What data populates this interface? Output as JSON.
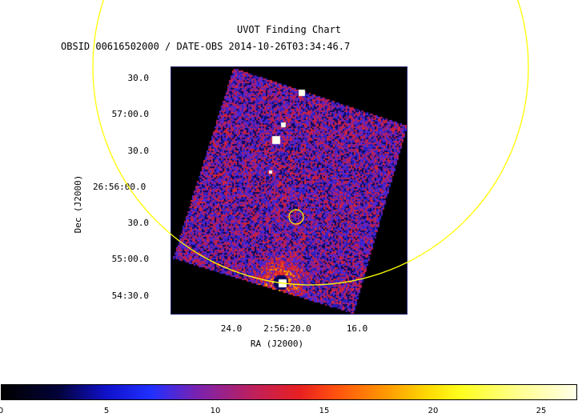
{
  "title": "UVOT Finding Chart",
  "subtitle": "OBSID 00616502000 / DATE-OBS 2014-10-26T03:34:46.7",
  "y_axis": {
    "label": "Dec (J2000)",
    "ticks": [
      "30.0",
      "57:00.0",
      "30.0",
      "26:56:00.0",
      "30.0",
      "55:00.0",
      "54:30.0"
    ]
  },
  "x_axis": {
    "label": "RA (J2000)",
    "ticks": [
      "24.0",
      "2:56:20.0",
      "16.0"
    ]
  },
  "colorbar": {
    "ticks": [
      "0",
      "5",
      "10",
      "15",
      "20",
      "25"
    ]
  },
  "colors": {
    "circle": "#ffff00",
    "background": "#000000",
    "frame": "#1a1a6e"
  }
}
